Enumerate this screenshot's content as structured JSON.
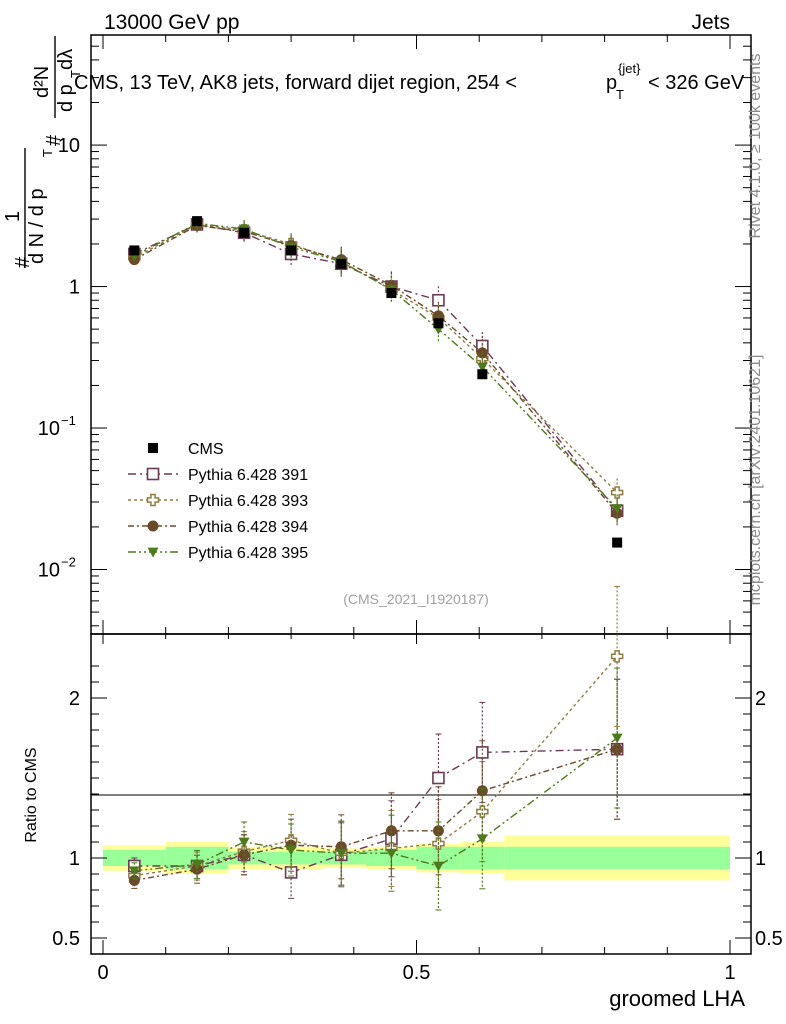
{
  "header": {
    "left": "13000 GeV pp",
    "right": "Jets"
  },
  "side_labels": {
    "rivet": "Rivet 4.1.0, ≥ 100k events",
    "mcplots": "mcplots.cern.ch [arXiv:2401.10621]"
  },
  "chart_data": {
    "type": "scatter",
    "title": "CMS, 13 TeV, AK8 jets, forward dijet region, 254 < p_T^{jet} < 326 GeV",
    "title_parts": {
      "main": "CMS, 13 TeV, AK8 jets, forward dijet region, 254 <",
      "p": "p",
      "sub": "T",
      "sup": "{jet}",
      "tail": "< 326 GeV"
    },
    "analysis_id": "(CMS_2021_I1920187)",
    "xlabel": "groomed LHA",
    "xlim": [
      0,
      1
    ],
    "x_ticks": [
      "0",
      "0.5",
      "1"
    ],
    "x_tick_values": [
      0,
      0.5,
      1
    ],
    "ylabel_parts": {
      "hash1": "#",
      "one": "1",
      "dN": "d N / d p",
      "T1": "T",
      "hash2": "#",
      "d2N": "d²N",
      "dpdl": "d p",
      "T2": "T",
      "dl": " dλ"
    },
    "ylim": [
      0.0035,
      60
    ],
    "y_ticks": [
      {
        "value": 10,
        "label": "10"
      },
      {
        "value": 1,
        "label": "1"
      },
      {
        "value": 0.1,
        "label": "10",
        "exp": "−1"
      },
      {
        "value": 0.01,
        "label": "10",
        "exp": "−2"
      }
    ],
    "ratio_ylabel": "Ratio to CMS",
    "ratio_ylim": [
      0.4,
      2.4
    ],
    "ratio_ticks": [
      {
        "value": 0.5,
        "label": "0.5"
      },
      {
        "value": 1,
        "label": "1"
      },
      {
        "value": 2,
        "label": "2"
      }
    ],
    "x": [
      0.05,
      0.15,
      0.225,
      0.3,
      0.38,
      0.46,
      0.535,
      0.605,
      0.82
    ],
    "bin_edges": [
      0.0,
      0.1,
      0.2,
      0.25,
      0.35,
      0.42,
      0.5,
      0.57,
      0.64,
      1.0
    ],
    "data": {
      "name": "CMS",
      "values": [
        1.8,
        2.9,
        2.4,
        1.8,
        1.45,
        0.9,
        0.55,
        0.24,
        0.0155
      ],
      "stat_band": [
        0.05,
        0.07,
        0.04,
        0.04,
        0.04,
        0.05,
        0.07,
        0.07,
        0.07
      ],
      "total_band": [
        0.08,
        0.1,
        0.07,
        0.07,
        0.06,
        0.07,
        0.09,
        0.1,
        0.14
      ]
    },
    "series": [
      {
        "name": "Pythia 6.428 391",
        "color": "#6b3a54",
        "marker": "open-square",
        "values": [
          1.7,
          2.75,
          2.4,
          1.7,
          1.45,
          1.0,
          0.8,
          0.38,
          0.026
        ],
        "ratio": [
          0.95,
          0.95,
          1.02,
          0.91,
          1.02,
          1.12,
          1.5,
          1.66,
          1.68
        ]
      },
      {
        "name": "Pythia 6.428 393",
        "color": "#8e7c3f",
        "marker": "open-cross",
        "values": [
          1.6,
          2.75,
          2.5,
          2.0,
          1.5,
          0.95,
          0.6,
          0.31,
          0.035
        ],
        "ratio": [
          0.89,
          0.95,
          1.04,
          1.11,
          1.03,
          1.06,
          1.09,
          1.29,
          2.26
        ]
      },
      {
        "name": "Pythia 6.428 394",
        "color": "#6b4a2a",
        "marker": "filled-circle",
        "values": [
          1.55,
          2.7,
          2.45,
          1.95,
          1.55,
          1.02,
          0.62,
          0.34,
          0.025
        ],
        "ratio": [
          0.86,
          0.93,
          1.02,
          1.08,
          1.07,
          1.17,
          1.17,
          1.42,
          1.68
        ]
      },
      {
        "name": "Pythia 6.428 395",
        "color": "#4d7a1a",
        "marker": "filled-triangle-down",
        "values": [
          1.65,
          2.8,
          2.55,
          1.9,
          1.5,
          0.95,
          0.5,
          0.27,
          0.027
        ],
        "ratio": [
          0.92,
          0.96,
          1.1,
          1.05,
          1.03,
          1.03,
          0.95,
          1.12,
          1.75
        ]
      }
    ],
    "legend_position": "bottom-left"
  }
}
